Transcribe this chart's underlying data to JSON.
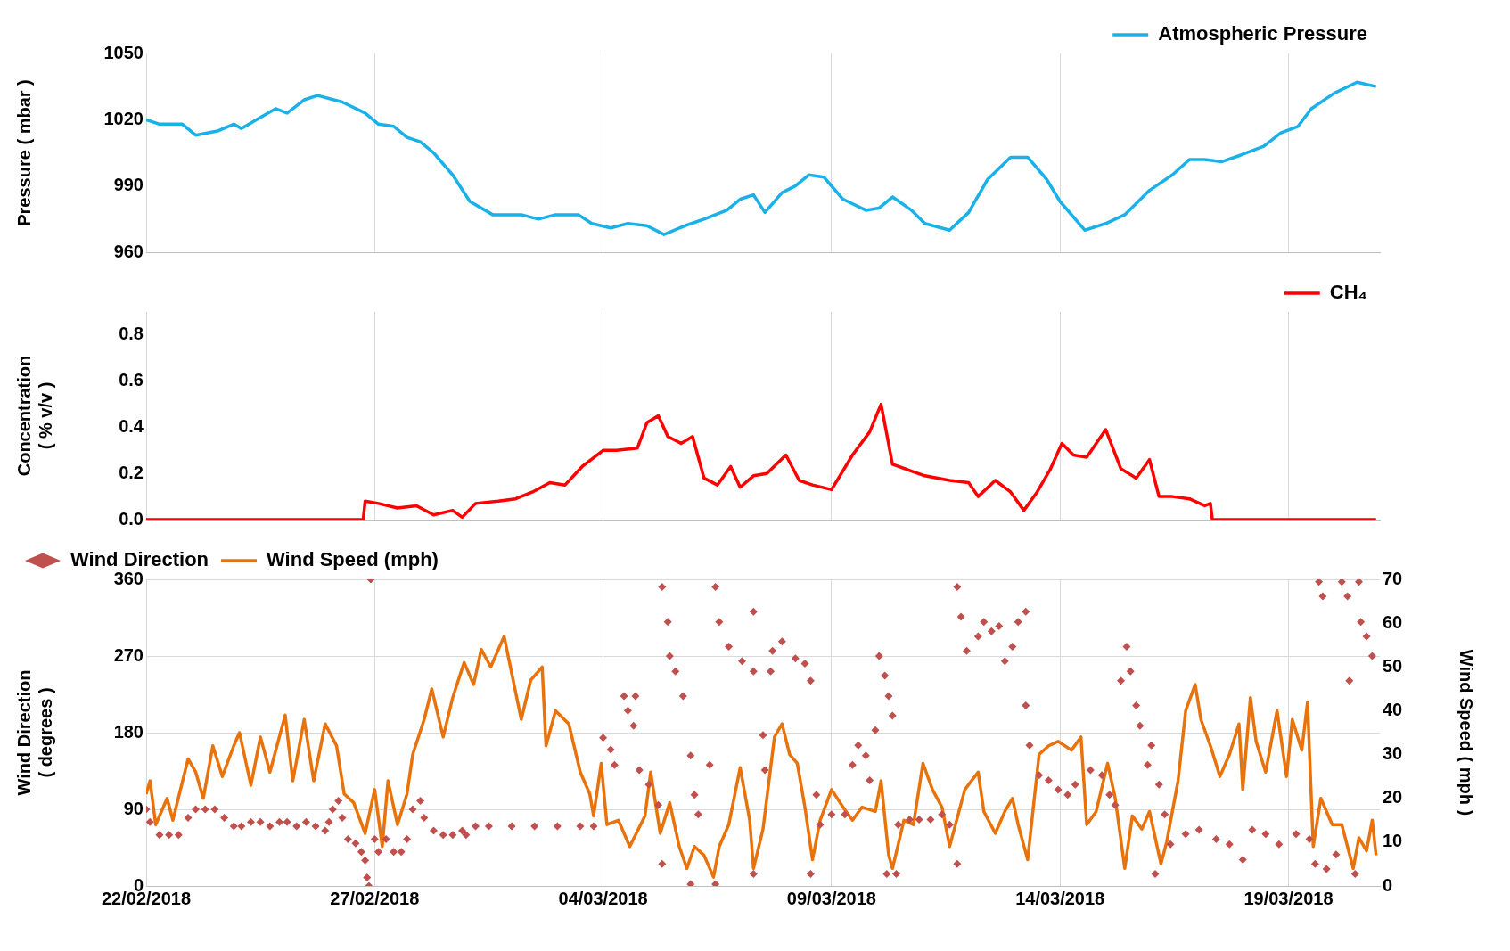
{
  "chart_data": [
    {
      "type": "line",
      "ylabel": "Pressure ( mbar )",
      "xlim": [
        "2018-02-22",
        "2018-03-21"
      ],
      "xticks": [
        {
          "value": "2018-02-22",
          "label": null
        },
        {
          "value": "2018-02-27",
          "label": null
        },
        {
          "value": "2018-03-04",
          "label": null
        },
        {
          "value": "2018-03-09",
          "label": null
        },
        {
          "value": "2018-03-14",
          "label": null
        },
        {
          "value": "2018-03-19",
          "label": null
        }
      ],
      "ylim": [
        960,
        1050
      ],
      "yticks": [
        960,
        990,
        1020,
        1050
      ],
      "grid": "x",
      "legend": "top right",
      "tick_labels": "y",
      "series": [
        {
          "name": "Atmospheric Pressure",
          "color": "#1ab0e8",
          "marker": "none",
          "x": [
            "2018-02-22T00:00",
            "2018-02-22T07:00",
            "2018-02-22T19:00",
            "2018-02-23T02:00",
            "2018-02-23T14:00",
            "2018-02-23T22:00",
            "2018-02-24T02:00",
            "2018-02-24T12:00",
            "2018-02-24T20:00",
            "2018-02-25T02:00",
            "2018-02-25T11:00",
            "2018-02-25T18:00",
            "2018-02-26T07:00",
            "2018-02-26T19:00",
            "2018-02-27T02:00",
            "2018-02-27T10:00",
            "2018-02-27T17:00",
            "2018-02-28T00:00",
            "2018-02-28T07:00",
            "2018-02-28T17:00",
            "2018-03-01T02:00",
            "2018-03-01T14:00",
            "2018-03-02T05:00",
            "2018-03-02T14:00",
            "2018-03-02T23:00",
            "2018-03-03T11:00",
            "2018-03-03T18:00",
            "2018-03-04T04:00",
            "2018-03-04T13:00",
            "2018-03-04T23:00",
            "2018-03-05T08:00",
            "2018-03-05T19:00",
            "2018-03-06T05:00",
            "2018-03-06T17:00",
            "2018-03-07T00:00",
            "2018-03-07T07:00",
            "2018-03-07T13:00",
            "2018-03-07T22:00",
            "2018-03-08T05:00",
            "2018-03-08T12:00",
            "2018-03-08T20:00",
            "2018-03-09T06:00",
            "2018-03-09T18:00",
            "2018-03-10T01:00",
            "2018-03-10T08:00",
            "2018-03-10T18:00",
            "2018-03-11T01:00",
            "2018-03-11T14:00",
            "2018-03-12T00:00",
            "2018-03-12T10:00",
            "2018-03-12T22:00",
            "2018-03-13T07:00",
            "2018-03-13T17:00",
            "2018-03-14T00:00",
            "2018-03-14T13:00",
            "2018-03-15T00:00",
            "2018-03-15T10:00",
            "2018-03-15T23:00",
            "2018-03-16T11:00",
            "2018-03-16T20:00",
            "2018-03-17T04:00",
            "2018-03-17T13:00",
            "2018-03-17T23:00",
            "2018-03-18T11:00",
            "2018-03-18T20:00",
            "2018-03-19T05:00",
            "2018-03-19T12:00",
            "2018-03-20T00:00",
            "2018-03-20T12:00",
            "2018-03-20T22:00"
          ],
          "values": [
            1020,
            1018,
            1018,
            1013,
            1015,
            1018,
            1016,
            1021,
            1025,
            1023,
            1029,
            1031,
            1028,
            1023,
            1018,
            1017,
            1012,
            1010,
            1005,
            995,
            983,
            977,
            977,
            975,
            977,
            977,
            973,
            971,
            973,
            972,
            968,
            972,
            975,
            979,
            984,
            986,
            978,
            987,
            990,
            995,
            994,
            984,
            979,
            980,
            985,
            979,
            973,
            970,
            978,
            993,
            1003,
            1003,
            993,
            983,
            970,
            973,
            977,
            988,
            995,
            1002,
            1002,
            1001,
            1004,
            1008,
            1014,
            1017,
            1025,
            1032,
            1037,
            1035
          ]
        }
      ]
    },
    {
      "type": "line",
      "ylabel": "Concentration\n( % v/v )",
      "xlim": [
        "2018-02-22",
        "2018-03-21"
      ],
      "xticks": [
        {
          "value": "2018-02-22",
          "label": null
        },
        {
          "value": "2018-02-27",
          "label": null
        },
        {
          "value": "2018-03-04",
          "label": null
        },
        {
          "value": "2018-03-09",
          "label": null
        },
        {
          "value": "2018-03-14",
          "label": null
        },
        {
          "value": "2018-03-19",
          "label": null
        }
      ],
      "ylim": [
        0,
        0.9
      ],
      "yticks": [
        {
          "value": 0,
          "label": "0.0"
        },
        {
          "value": 0.2,
          "label": "0.2"
        },
        {
          "value": 0.4,
          "label": "0.4"
        },
        {
          "value": 0.6,
          "label": "0.6"
        },
        {
          "value": 0.8,
          "label": "0.8"
        }
      ],
      "grid": "x",
      "legend": "top right",
      "tick_labels": "y",
      "series": [
        {
          "name": "CH₄",
          "color": "#ff0000",
          "marker": "none",
          "x": [
            "2018-02-22T00:00",
            "2018-02-26T18:00",
            "2018-02-26T19:00",
            "2018-02-27T02:00",
            "2018-02-27T12:00",
            "2018-02-27T22:00",
            "2018-02-28T07:00",
            "2018-02-28T17:00",
            "2018-02-28T22:00",
            "2018-03-01T05:00",
            "2018-03-01T17:00",
            "2018-03-02T02:00",
            "2018-03-02T11:00",
            "2018-03-02T20:00",
            "2018-03-03T04:00",
            "2018-03-03T13:00",
            "2018-03-04T00:00",
            "2018-03-04T07:00",
            "2018-03-04T18:00",
            "2018-03-04T23:00",
            "2018-03-05T05:00",
            "2018-03-05T10:00",
            "2018-03-05T17:00",
            "2018-03-05T23:00",
            "2018-03-06T05:00",
            "2018-03-06T12:00",
            "2018-03-06T19:00",
            "2018-03-07T00:00",
            "2018-03-07T07:00",
            "2018-03-07T14:00",
            "2018-03-08T00:00",
            "2018-03-08T07:00",
            "2018-03-08T14:00",
            "2018-03-09T00:00",
            "2018-03-09T11:00",
            "2018-03-09T20:00",
            "2018-03-10T02:00",
            "2018-03-10T08:00",
            "2018-03-10T18:00",
            "2018-03-11T01:00",
            "2018-03-11T14:00",
            "2018-03-12T00:00",
            "2018-03-12T05:00",
            "2018-03-12T14:00",
            "2018-03-12T22:00",
            "2018-03-13T05:00",
            "2018-03-13T12:00",
            "2018-03-13T19:00",
            "2018-03-14T01:00",
            "2018-03-14T07:00",
            "2018-03-14T14:00",
            "2018-03-15T00:00",
            "2018-03-15T08:00",
            "2018-03-15T16:00",
            "2018-03-15T23:00",
            "2018-03-16T04:00",
            "2018-03-16T11:00",
            "2018-03-16T20:00",
            "2018-03-17T04:00",
            "2018-03-17T07:00",
            "2018-03-17T08:00",
            "2018-03-20T22:00"
          ],
          "values": [
            0,
            0,
            0.08,
            0.07,
            0.05,
            0.06,
            0.02,
            0.04,
            0.01,
            0.07,
            0.08,
            0.09,
            0.12,
            0.16,
            0.15,
            0.23,
            0.3,
            0.3,
            0.31,
            0.42,
            0.45,
            0.36,
            0.33,
            0.36,
            0.18,
            0.15,
            0.23,
            0.14,
            0.19,
            0.2,
            0.28,
            0.17,
            0.15,
            0.13,
            0.28,
            0.38,
            0.5,
            0.24,
            0.21,
            0.19,
            0.17,
            0.16,
            0.1,
            0.17,
            0.12,
            0.04,
            0.12,
            0.22,
            0.33,
            0.28,
            0.27,
            0.39,
            0.22,
            0.18,
            0.26,
            0.1,
            0.1,
            0.09,
            0.06,
            0.07,
            0,
            0
          ]
        }
      ]
    },
    {
      "type": "scatter",
      "ylabel": "Wind Direction\n( degrees )",
      "y2label": "Wind Speed ( mph )",
      "xlim": [
        "2018-02-22",
        "2018-03-21"
      ],
      "xticks": [
        {
          "value": "2018-02-22",
          "label": "22/02/2018"
        },
        {
          "value": "2018-02-27",
          "label": "27/02/2018"
        },
        {
          "value": "2018-03-04",
          "label": "04/03/2018"
        },
        {
          "value": "2018-03-09",
          "label": "09/03/2018"
        },
        {
          "value": "2018-03-14",
          "label": "14/03/2018"
        },
        {
          "value": "2018-03-19",
          "label": "19/03/2018"
        }
      ],
      "ylim": [
        0,
        360
      ],
      "yticks": [
        0,
        90,
        180,
        270,
        360
      ],
      "y2lim": [
        0,
        70
      ],
      "y2ticks": [
        0,
        10,
        20,
        30,
        40,
        50,
        60,
        70
      ],
      "grid": true,
      "legend": "top left",
      "series": [
        {
          "name": "Wind Direction",
          "color": "#c0504d",
          "marker": "diamond",
          "x": [
            "2018-02-22T00:00",
            "2018-02-22T02:00",
            "2018-02-22T07:00",
            "2018-02-22T12:00",
            "2018-02-22T17:00",
            "2018-02-22T22:00",
            "2018-02-23T02:00",
            "2018-02-23T07:00",
            "2018-02-23T12:00",
            "2018-02-23T17:00",
            "2018-02-23T22:00",
            "2018-02-24T02:00",
            "2018-02-24T07:00",
            "2018-02-24T12:00",
            "2018-02-24T17:00",
            "2018-02-24T22:00",
            "2018-02-25T02:00",
            "2018-02-25T07:00",
            "2018-02-25T12:00",
            "2018-02-25T17:00",
            "2018-02-25T22:00",
            "2018-02-26T00:00",
            "2018-02-26T02:00",
            "2018-02-26T05:00",
            "2018-02-26T07:00",
            "2018-02-26T10:00",
            "2018-02-26T14:00",
            "2018-02-26T17:00",
            "2018-02-26T19:00",
            "2018-02-26T20:00",
            "2018-02-26T21:00",
            "2018-02-26T22:00",
            "2018-02-27T00:00",
            "2018-02-27T02:00",
            "2018-02-27T06:00",
            "2018-02-27T10:00",
            "2018-02-27T14:00",
            "2018-02-27T17:00",
            "2018-02-27T20:00",
            "2018-02-28T00:00",
            "2018-02-28T02:00",
            "2018-02-28T07:00",
            "2018-02-28T12:00",
            "2018-02-28T17:00",
            "2018-02-28T22:00",
            "2018-03-01T00:00",
            "2018-03-01T05:00",
            "2018-03-01T12:00",
            "2018-03-02T00:00",
            "2018-03-02T12:00",
            "2018-03-03T00:00",
            "2018-03-03T12:00",
            "2018-03-03T19:00",
            "2018-03-04T00:00",
            "2018-03-04T04:00",
            "2018-03-04T06:00",
            "2018-03-04T11:00",
            "2018-03-04T13:00",
            "2018-03-04T16:00",
            "2018-03-04T17:00",
            "2018-03-04T19:00",
            "2018-03-05T00:00",
            "2018-03-05T05:00",
            "2018-03-05T07:00",
            "2018-03-05T07:00",
            "2018-03-05T10:00",
            "2018-03-05T11:00",
            "2018-03-05T14:00",
            "2018-03-05T18:00",
            "2018-03-05T22:00",
            "2018-03-05T22:00",
            "2018-03-06T00:00",
            "2018-03-06T02:00",
            "2018-03-06T08:00",
            "2018-03-06T11:00",
            "2018-03-06T11:00",
            "2018-03-06T13:00",
            "2018-03-06T18:00",
            "2018-03-07T01:00",
            "2018-03-07T07:00",
            "2018-03-07T07:00",
            "2018-03-07T07:00",
            "2018-03-07T12:00",
            "2018-03-07T13:00",
            "2018-03-07T16:00",
            "2018-03-07T17:00",
            "2018-03-07T22:00",
            "2018-03-08T05:00",
            "2018-03-08T10:00",
            "2018-03-08T13:00",
            "2018-03-08T13:00",
            "2018-03-08T16:00",
            "2018-03-08T18:00",
            "2018-03-09T00:00",
            "2018-03-09T07:00",
            "2018-03-09T11:00",
            "2018-03-09T14:00",
            "2018-03-09T18:00",
            "2018-03-09T20:00",
            "2018-03-09T23:00",
            "2018-03-10T01:00",
            "2018-03-10T04:00",
            "2018-03-10T06:00",
            "2018-03-10T08:00",
            "2018-03-10T05:00",
            "2018-03-10T10:00",
            "2018-03-10T11:00",
            "2018-03-10T17:00",
            "2018-03-10T22:00",
            "2018-03-11T04:00",
            "2018-03-11T10:00",
            "2018-03-11T14:00",
            "2018-03-11T18:00",
            "2018-03-11T18:00",
            "2018-03-11T20:00",
            "2018-03-11T23:00",
            "2018-03-12T05:00",
            "2018-03-12T08:00",
            "2018-03-12T12:00",
            "2018-03-12T16:00",
            "2018-03-12T19:00",
            "2018-03-12T23:00",
            "2018-03-13T02:00",
            "2018-03-13T06:00",
            "2018-03-13T06:00",
            "2018-03-13T08:00",
            "2018-03-13T13:00",
            "2018-03-13T18:00",
            "2018-03-13T23:00",
            "2018-03-14T04:00",
            "2018-03-14T08:00",
            "2018-03-14T16:00",
            "2018-03-14T22:00",
            "2018-03-15T02:00",
            "2018-03-15T05:00",
            "2018-03-15T08:00",
            "2018-03-15T11:00",
            "2018-03-15T13:00",
            "2018-03-15T16:00",
            "2018-03-15T18:00",
            "2018-03-15T22:00",
            "2018-03-16T00:00",
            "2018-03-16T02:00",
            "2018-03-16T04:00",
            "2018-03-16T07:00",
            "2018-03-16T10:00",
            "2018-03-16T18:00",
            "2018-03-17T01:00",
            "2018-03-17T10:00",
            "2018-03-17T17:00",
            "2018-03-18T00:00",
            "2018-03-18T05:00",
            "2018-03-18T12:00",
            "2018-03-18T19:00",
            "2018-03-19T04:00",
            "2018-03-19T11:00",
            "2018-03-19T14:00",
            "2018-03-19T16:00",
            "2018-03-19T18:00",
            "2018-03-19T20:00",
            "2018-03-20T01:00",
            "2018-03-20T04:00",
            "2018-03-20T07:00",
            "2018-03-20T08:00",
            "2018-03-20T11:00",
            "2018-03-20T13:00",
            "2018-03-20T14:00",
            "2018-03-20T17:00",
            "2018-03-20T20:00"
          ],
          "values": [
            90,
            75,
            60,
            60,
            60,
            80,
            90,
            90,
            90,
            80,
            70,
            70,
            75,
            75,
            70,
            75,
            75,
            70,
            75,
            70,
            65,
            75,
            90,
            100,
            80,
            55,
            50,
            40,
            30,
            10,
            0,
            360,
            55,
            40,
            55,
            40,
            40,
            55,
            90,
            100,
            80,
            65,
            60,
            60,
            65,
            60,
            70,
            70,
            70,
            70,
            70,
            70,
            70,
            174,
            160,
            142,
            223,
            206,
            188,
            223,
            136,
            119,
            95,
            26,
            351,
            310,
            270,
            252,
            223,
            153,
            2,
            107,
            84,
            142,
            351,
            2,
            310,
            281,
            264,
            252,
            322,
            14,
            177,
            136,
            252,
            276,
            287,
            267,
            261,
            241,
            14,
            107,
            72,
            84,
            84,
            142,
            165,
            153,
            124,
            183,
            270,
            247,
            223,
            200,
            14,
            14,
            72,
            78,
            78,
            78,
            84,
            72,
            26,
            351,
            316,
            276,
            293,
            310,
            299,
            305,
            264,
            281,
            310,
            322,
            212,
            165,
            130,
            124,
            113,
            107,
            119,
            136,
            130,
            107,
            95,
            241,
            281,
            252,
            212,
            188,
            142,
            165,
            14,
            119,
            84,
            49,
            61,
            66,
            55,
            49,
            31,
            66,
            61,
            49,
            61,
            55,
            26,
            357,
            340,
            20,
            37,
            357,
            340,
            241,
            14,
            357,
            310,
            293,
            270
          ]
        },
        {
          "name": "Wind Speed (mph)",
          "type": "line",
          "axis": "y2",
          "color": "#e8730c",
          "marker": "none",
          "x": [
            "2018-02-22T00:00",
            "2018-02-22T02:00",
            "2018-02-22T05:00",
            "2018-02-22T11:00",
            "2018-02-22T14:00",
            "2018-02-22T22:00",
            "2018-02-23T02:00",
            "2018-02-23T06:00",
            "2018-02-23T11:00",
            "2018-02-23T16:00",
            "2018-02-23T22:00",
            "2018-02-24T01:00",
            "2018-02-24T07:00",
            "2018-02-24T12:00",
            "2018-02-24T17:00",
            "2018-02-25T01:00",
            "2018-02-25T05:00",
            "2018-02-25T11:00",
            "2018-02-25T16:00",
            "2018-02-25T22:00",
            "2018-02-26T04:00",
            "2018-02-26T08:00",
            "2018-02-26T13:00",
            "2018-02-26T19:00",
            "2018-02-27T00:00",
            "2018-02-27T04:00",
            "2018-02-27T07:00",
            "2018-02-27T12:00",
            "2018-02-27T17:00",
            "2018-02-27T20:00",
            "2018-02-28T02:00",
            "2018-02-28T06:00",
            "2018-02-28T12:00",
            "2018-02-28T17:00",
            "2018-02-28T23:00",
            "2018-03-01T04:00",
            "2018-03-01T08:00",
            "2018-03-01T13:00",
            "2018-03-01T20:00",
            "2018-03-02T05:00",
            "2018-03-02T10:00",
            "2018-03-02T16:00",
            "2018-03-02T18:00",
            "2018-03-02T23:00",
            "2018-03-03T06:00",
            "2018-03-03T12:00",
            "2018-03-03T17:00",
            "2018-03-03T19:00",
            "2018-03-03T23:00",
            "2018-03-04T02:00",
            "2018-03-04T08:00",
            "2018-03-04T14:00",
            "2018-03-04T22:00",
            "2018-03-05T01:00",
            "2018-03-05T06:00",
            "2018-03-05T11:00",
            "2018-03-05T16:00",
            "2018-03-05T20:00",
            "2018-03-06T00:00",
            "2018-03-06T05:00",
            "2018-03-06T10:00",
            "2018-03-06T13:00",
            "2018-03-06T18:00",
            "2018-03-07T00:00",
            "2018-03-07T05:00",
            "2018-03-07T07:00",
            "2018-03-07T12:00",
            "2018-03-07T14:00",
            "2018-03-07T18:00",
            "2018-03-07T22:00",
            "2018-03-08T02:00",
            "2018-03-08T06:00",
            "2018-03-08T10:00",
            "2018-03-08T14:00",
            "2018-03-08T18:00",
            "2018-03-09T00:00",
            "2018-03-09T06:00",
            "2018-03-09T11:00",
            "2018-03-09T16:00",
            "2018-03-09T23:00",
            "2018-03-10T02:00",
            "2018-03-10T06:00",
            "2018-03-10T08:00",
            "2018-03-10T14:00",
            "2018-03-10T19:00",
            "2018-03-11T00:00",
            "2018-03-11T05:00",
            "2018-03-11T10:00",
            "2018-03-11T14:00",
            "2018-03-11T22:00",
            "2018-03-12T05:00",
            "2018-03-12T08:00",
            "2018-03-12T14:00",
            "2018-03-12T19:00",
            "2018-03-12T23:00",
            "2018-03-13T02:00",
            "2018-03-13T07:00",
            "2018-03-13T13:00",
            "2018-03-13T18:00",
            "2018-03-13T23:00",
            "2018-03-14T06:00",
            "2018-03-14T11:00",
            "2018-03-14T14:00",
            "2018-03-14T19:00",
            "2018-03-15T01:00",
            "2018-03-15T05:00",
            "2018-03-15T10:00",
            "2018-03-15T14:00",
            "2018-03-15T19:00",
            "2018-03-15T23:00",
            "2018-03-16T05:00",
            "2018-03-16T08:00",
            "2018-03-16T14:00",
            "2018-03-16T18:00",
            "2018-03-16T23:00",
            "2018-03-17T02:00",
            "2018-03-17T07:00",
            "2018-03-17T12:00",
            "2018-03-17T17:00",
            "2018-03-17T22:00",
            "2018-03-18T00:00",
            "2018-03-18T04:00",
            "2018-03-18T07:00",
            "2018-03-18T12:00",
            "2018-03-18T18:00",
            "2018-03-18T23:00",
            "2018-03-19T02:00",
            "2018-03-19T07:00",
            "2018-03-19T10:00",
            "2018-03-19T13:00",
            "2018-03-19T17:00",
            "2018-03-19T23:00",
            "2018-03-20T04:00",
            "2018-03-20T10:00",
            "2018-03-20T13:00",
            "2018-03-20T17:00",
            "2018-03-20T20:00",
            "2018-03-20T22:00"
          ],
          "values": [
            21,
            24,
            14,
            20,
            15,
            29,
            26,
            20,
            32,
            25,
            32,
            35,
            23,
            34,
            26,
            39,
            24,
            38,
            24,
            37,
            32,
            21,
            19,
            12,
            22,
            9,
            24,
            14,
            21,
            30,
            38,
            45,
            34,
            43,
            51,
            46,
            54,
            50,
            57,
            38,
            47,
            50,
            32,
            40,
            37,
            26,
            21,
            16,
            28,
            14,
            15,
            9,
            16,
            26,
            12,
            19,
            9,
            4,
            9,
            7,
            2,
            9,
            14,
            27,
            15,
            4,
            13,
            20,
            34,
            37,
            30,
            28,
            18,
            6,
            15,
            22,
            18,
            15,
            18,
            17,
            24,
            7,
            4,
            15,
            14,
            28,
            22,
            18,
            9,
            22,
            26,
            17,
            12,
            17,
            20,
            14,
            6,
            30,
            32,
            33,
            31,
            34,
            14,
            17,
            28,
            20,
            4,
            16,
            13,
            17,
            5,
            10,
            24,
            40,
            46,
            38,
            32,
            25,
            30,
            37,
            22,
            43,
            33,
            26,
            40,
            25,
            38,
            31,
            42,
            9,
            20,
            14,
            14,
            4,
            11,
            8,
            15,
            7
          ]
        }
      ]
    }
  ]
}
